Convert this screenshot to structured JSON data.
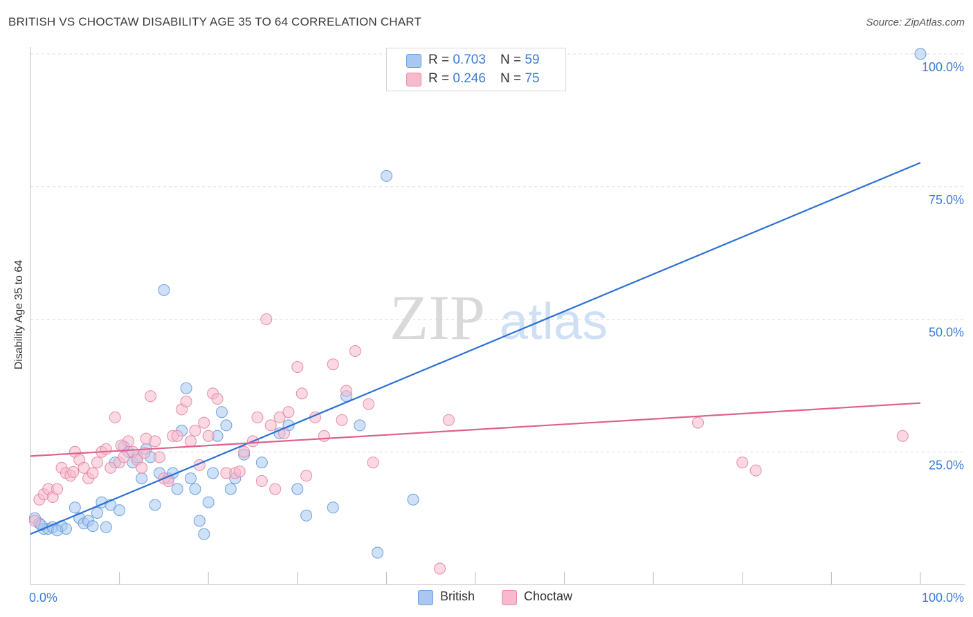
{
  "header": {
    "title": "BRITISH VS CHOCTAW DISABILITY AGE 35 TO 64 CORRELATION CHART",
    "source": "Source: ZipAtlas.com"
  },
  "watermark": {
    "zip": "ZIP",
    "atlas": "atlas"
  },
  "legend_top": [
    {
      "r_label": "R = ",
      "r_value": "0.703",
      "n_label": "N = ",
      "n_value": "59",
      "color": "#a8c8f0"
    },
    {
      "r_label": "R = ",
      "r_value": "0.246",
      "n_label": "N = ",
      "n_value": "75",
      "color": "#f7b9cc"
    }
  ],
  "chart_data": {
    "type": "scatter",
    "title": "BRITISH VS CHOCTAW DISABILITY AGE 35 TO 64 CORRELATION CHART",
    "xlabel": "",
    "ylabel": "Disability Age 35 to 64",
    "xlim": [
      0,
      100
    ],
    "ylim": [
      0,
      100
    ],
    "x_tick_labels": [
      {
        "value": 0,
        "label": "0.0%"
      },
      {
        "value": 100,
        "label": "100.0%"
      }
    ],
    "y_tick_labels": [
      {
        "value": 25,
        "label": "25.0%"
      },
      {
        "value": 50,
        "label": "50.0%"
      },
      {
        "value": 75,
        "label": "75.0%"
      },
      {
        "value": 100,
        "label": "100.0%"
      }
    ],
    "x_minor_ticks": [
      10,
      20,
      30,
      40,
      50,
      60,
      70,
      80,
      90,
      100
    ],
    "grid": true,
    "legend_placement": "top-center",
    "series": [
      {
        "name": "British",
        "color": "#6a9fe0",
        "fill": "#a8c8f0",
        "trend": {
          "x": [
            0,
            100
          ],
          "y": [
            9.5,
            79.5
          ],
          "color": "#2b6fd4"
        },
        "points": [
          [
            0.5,
            12.5
          ],
          [
            1,
            11.5
          ],
          [
            1.5,
            10.5
          ],
          [
            2,
            10.5
          ],
          [
            2.5,
            10.8
          ],
          [
            3.5,
            11
          ],
          [
            4,
            10.5
          ],
          [
            5,
            14.5
          ],
          [
            5.5,
            12.5
          ],
          [
            6,
            11.5
          ],
          [
            6.5,
            12
          ],
          [
            7,
            11
          ],
          [
            7.5,
            13.5
          ],
          [
            8,
            15.5
          ],
          [
            9,
            15
          ],
          [
            9.5,
            23
          ],
          [
            10,
            14
          ],
          [
            10.5,
            26
          ],
          [
            11,
            25
          ],
          [
            11.5,
            23
          ],
          [
            12,
            24
          ],
          [
            12.5,
            20
          ],
          [
            13,
            25.5
          ],
          [
            13.5,
            24
          ],
          [
            14,
            15
          ],
          [
            14.5,
            21
          ],
          [
            15,
            55.5
          ],
          [
            15.5,
            20
          ],
          [
            16,
            21
          ],
          [
            16.5,
            18
          ],
          [
            17,
            29
          ],
          [
            17.5,
            37
          ],
          [
            18,
            20
          ],
          [
            18.5,
            18
          ],
          [
            19,
            12
          ],
          [
            19.5,
            9.5
          ],
          [
            20,
            15.5
          ],
          [
            20.5,
            21
          ],
          [
            21,
            28
          ],
          [
            21.5,
            32.5
          ],
          [
            22,
            30
          ],
          [
            22.5,
            18
          ],
          [
            23,
            20
          ],
          [
            24,
            24.5
          ],
          [
            26,
            23
          ],
          [
            28,
            28.5
          ],
          [
            29,
            30
          ],
          [
            30,
            18
          ],
          [
            31,
            13
          ],
          [
            34,
            14.5
          ],
          [
            35.5,
            35.5
          ],
          [
            37,
            30
          ],
          [
            39,
            6
          ],
          [
            40,
            77
          ],
          [
            43,
            16
          ],
          [
            100,
            100
          ],
          [
            1.2,
            11.2
          ],
          [
            3,
            10.2
          ],
          [
            8.5,
            10.8
          ]
        ]
      },
      {
        "name": "Choctaw",
        "color": "#e88aa8",
        "fill": "#f7b9cc",
        "trend": {
          "x": [
            0,
            100
          ],
          "y": [
            24.2,
            34.2
          ],
          "color": "#e0608a"
        },
        "points": [
          [
            0.5,
            12
          ],
          [
            1,
            16
          ],
          [
            1.5,
            17
          ],
          [
            2,
            18
          ],
          [
            2.5,
            16.5
          ],
          [
            3,
            18
          ],
          [
            3.5,
            22
          ],
          [
            4,
            21
          ],
          [
            4.5,
            20.5
          ],
          [
            5,
            25
          ],
          [
            5.5,
            23.5
          ],
          [
            6,
            22
          ],
          [
            6.5,
            20
          ],
          [
            7,
            21
          ],
          [
            7.5,
            23
          ],
          [
            8,
            25
          ],
          [
            8.5,
            25.5
          ],
          [
            9,
            22
          ],
          [
            9.5,
            31.5
          ],
          [
            10,
            23
          ],
          [
            10.5,
            24
          ],
          [
            11,
            27
          ],
          [
            11.5,
            25
          ],
          [
            12,
            23.5
          ],
          [
            12.5,
            22
          ],
          [
            13,
            27.5
          ],
          [
            13.5,
            35.5
          ],
          [
            14,
            27
          ],
          [
            14.5,
            24
          ],
          [
            15,
            20
          ],
          [
            15.5,
            19.5
          ],
          [
            16,
            28
          ],
          [
            16.5,
            28
          ],
          [
            17,
            33
          ],
          [
            17.5,
            34.5
          ],
          [
            18,
            27
          ],
          [
            18.5,
            29
          ],
          [
            19,
            22.5
          ],
          [
            19.5,
            30.5
          ],
          [
            20,
            28
          ],
          [
            20.5,
            36
          ],
          [
            21,
            35
          ],
          [
            22,
            21
          ],
          [
            23,
            21
          ],
          [
            24,
            25
          ],
          [
            25,
            27
          ],
          [
            25.5,
            31.5
          ],
          [
            26,
            19.5
          ],
          [
            26.5,
            50
          ],
          [
            27,
            30
          ],
          [
            27.5,
            18
          ],
          [
            28,
            31.5
          ],
          [
            28.5,
            28.5
          ],
          [
            29,
            32.5
          ],
          [
            30,
            41
          ],
          [
            30.5,
            36
          ],
          [
            31,
            20.5
          ],
          [
            32,
            31.5
          ],
          [
            33,
            28
          ],
          [
            34,
            41.5
          ],
          [
            35,
            31
          ],
          [
            35.5,
            36.5
          ],
          [
            36.5,
            44
          ],
          [
            38,
            34
          ],
          [
            38.5,
            23
          ],
          [
            46,
            3
          ],
          [
            47,
            31
          ],
          [
            75,
            30.5
          ],
          [
            80,
            23
          ],
          [
            81.5,
            21.5
          ],
          [
            98,
            28
          ],
          [
            4.8,
            21.2
          ],
          [
            12.8,
            24.8
          ],
          [
            23.5,
            21.3
          ],
          [
            10.2,
            26.2
          ]
        ]
      }
    ]
  }
}
